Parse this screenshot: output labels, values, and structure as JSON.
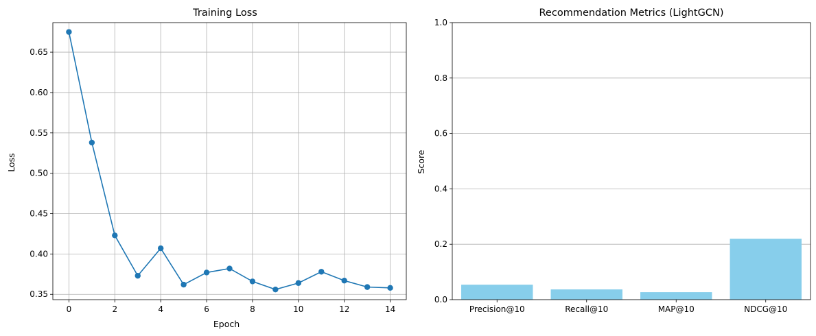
{
  "chart_data": [
    {
      "type": "line",
      "title": "Training Loss",
      "xlabel": "Epoch",
      "ylabel": "Loss",
      "x": [
        0,
        1,
        2,
        3,
        4,
        5,
        6,
        7,
        8,
        9,
        10,
        11,
        12,
        13,
        14
      ],
      "series": [
        {
          "values": [
            0.675,
            0.538,
            0.423,
            0.373,
            0.407,
            0.362,
            0.377,
            0.382,
            0.366,
            0.356,
            0.364,
            0.378,
            0.367,
            0.359,
            0.358
          ],
          "color": "#1f77b4",
          "marker": "circle"
        }
      ],
      "xlim": [
        -0.7,
        14.7
      ],
      "ylim": [
        0.3434,
        0.6866
      ],
      "xticks": [
        0,
        2,
        4,
        6,
        8,
        10,
        12,
        14
      ],
      "xtick_labels": [
        "0",
        "2",
        "4",
        "6",
        "8",
        "10",
        "12",
        "14"
      ],
      "yticks": [
        0.35,
        0.4,
        0.45,
        0.5,
        0.55,
        0.6,
        0.65
      ],
      "ytick_labels": [
        "0.35",
        "0.40",
        "0.45",
        "0.50",
        "0.55",
        "0.60",
        "0.65"
      ],
      "grid": "both"
    },
    {
      "type": "bar",
      "title": "Recommendation Metrics (LightGCN)",
      "xlabel": "",
      "ylabel": "Score",
      "categories": [
        "Precision@10",
        "Recall@10",
        "MAP@10",
        "NDCG@10"
      ],
      "values": [
        0.054,
        0.037,
        0.027,
        0.22
      ],
      "color": "#87ceeb",
      "ylim": [
        0,
        1.0
      ],
      "yticks": [
        0.0,
        0.2,
        0.4,
        0.6,
        0.8,
        1.0
      ],
      "ytick_labels": [
        "0.0",
        "0.2",
        "0.4",
        "0.6",
        "0.8",
        "1.0"
      ],
      "grid": "y"
    }
  ]
}
